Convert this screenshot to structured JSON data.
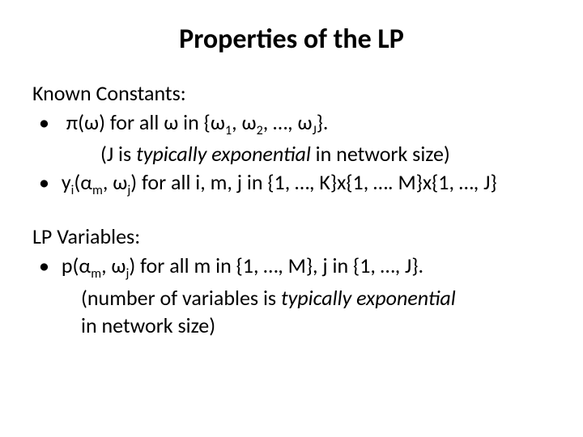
{
  "title": "Properties of the LP",
  "known": {
    "heading": "Known Constants:",
    "b1_line1_pre": "π(ω) for all ω in {ω",
    "b1_line1_s1": "1",
    "b1_line1_mid1": ", ω",
    "b1_line1_s2": "2",
    "b1_line1_mid2": ", …, ω",
    "b1_line1_s3": "J",
    "b1_line1_post": "}.",
    "b1_line2_a": "(J is ",
    "b1_line2_em": "typically exponential",
    "b1_line2_b": " in network size)",
    "b2_pre": "y",
    "b2_s1": "i",
    "b2_mid1": "(α",
    "b2_s2": "m",
    "b2_mid2": ", ω",
    "b2_s3": "j",
    "b2_post": ") for all i, m, j in {1, …, K}x{1, …. M}x{1, …, J}"
  },
  "vars": {
    "heading": "LP Variables:",
    "b1_pre": "p(α",
    "b1_s1": "m",
    "b1_mid1": ", ω",
    "b1_s2": "j",
    "b1_post": ") for all m in {1, …, M}, j in {1, …, J}.",
    "b1_line2_a": "(number of variables is ",
    "b1_line2_em": "typically exponential",
    "b1_line3": "in network size)"
  },
  "style": {
    "background": "#ffffff",
    "text_color": "#000000",
    "title_fontsize": 34,
    "body_fontsize": 26,
    "font_family": "Calibri"
  }
}
